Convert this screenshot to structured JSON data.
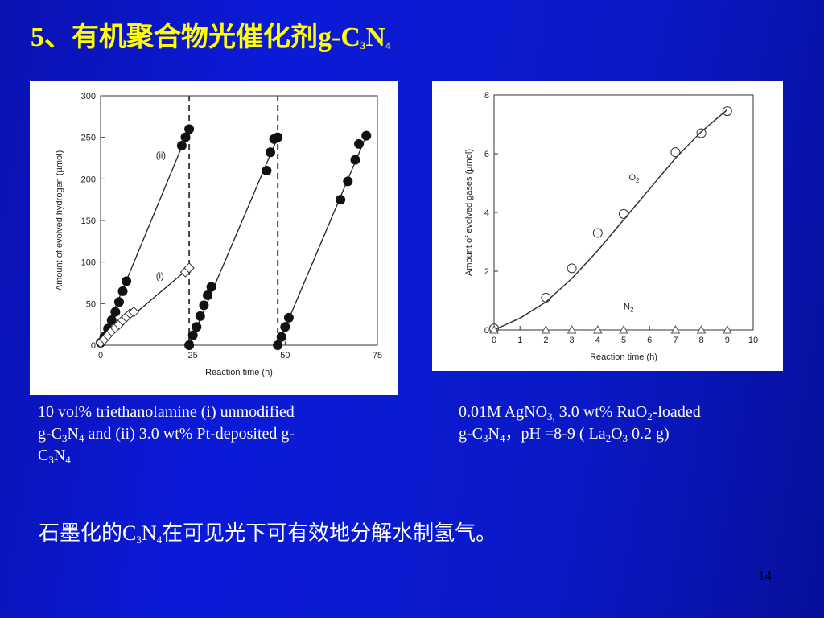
{
  "title": {
    "prefix": "5、有机聚合物光催化剂g-C",
    "sub1": "3",
    "mid": "N",
    "sub2": "4"
  },
  "captions": {
    "left": {
      "l1": "10 vol% triethanolamine (i) unmodified",
      "l2a": "g-C",
      "l2s1": "3",
      "l2b": "N",
      "l2s2": "4",
      "l2c": " and (ii) 3.0 wt% Pt-deposited g-",
      "l3a": "C",
      "l3s1": "3",
      "l3b": "N",
      "l3s2": "4."
    },
    "right": {
      "l1a": "0.01M AgNO",
      "l1s1": "3,",
      "l1b": "  3.0 wt% RuO",
      "l1s2": "2",
      "l1c": "-loaded",
      "l2a": "g-C",
      "l2s1": "3",
      "l2b": "N",
      "l2s2": "4",
      "l2c": "，pH =8-9 ( La",
      "l2s3": "2",
      "l2d": "O",
      "l2s4": "3",
      "l2e": " 0.2 g)"
    }
  },
  "bottom": {
    "a": "石墨化的C",
    "s1": "3",
    "b": "N",
    "s2": "4",
    "c": "在可见光下可有效地分解水制氢气。"
  },
  "page_number": "14",
  "chart_data": [
    {
      "type": "scatter",
      "xlabel": "Reaction time (h)",
      "ylabel": "Amount of evolved hydrogen (µmol)",
      "xlim": [
        0,
        75
      ],
      "ylim": [
        0,
        300
      ],
      "xticks": [
        0,
        25,
        50,
        75
      ],
      "yticks": [
        0,
        50,
        100,
        150,
        200,
        250,
        300
      ],
      "vlines": [
        24,
        48
      ],
      "annotations": [
        {
          "text": "(ii)",
          "x": 15,
          "y": 225
        },
        {
          "text": "(i)",
          "x": 15,
          "y": 80
        }
      ],
      "series": [
        {
          "name": "(ii)",
          "marker": "filled-circle",
          "segments": [
            [
              [
                0,
                3
              ],
              [
                1,
                10
              ],
              [
                2,
                20
              ],
              [
                3,
                30
              ],
              [
                4,
                40
              ],
              [
                5,
                52
              ],
              [
                6,
                65
              ],
              [
                7,
                77
              ],
              [
                22,
                240
              ],
              [
                23,
                250
              ],
              [
                24,
                260
              ]
            ],
            [
              [
                24,
                0
              ],
              [
                25,
                12
              ],
              [
                26,
                22
              ],
              [
                27,
                35
              ],
              [
                28,
                48
              ],
              [
                29,
                60
              ],
              [
                30,
                70
              ],
              [
                45,
                210
              ],
              [
                46,
                232
              ],
              [
                47,
                248
              ],
              [
                48,
                250
              ]
            ],
            [
              [
                48,
                0
              ],
              [
                49,
                10
              ],
              [
                50,
                22
              ],
              [
                51,
                33
              ],
              [
                65,
                175
              ],
              [
                67,
                197
              ],
              [
                69,
                223
              ],
              [
                70,
                242
              ],
              [
                72,
                252
              ]
            ]
          ]
        },
        {
          "name": "(i)",
          "marker": "open-diamond",
          "segments": [
            [
              [
                0,
                3
              ],
              [
                1,
                7
              ],
              [
                2,
                12
              ],
              [
                3,
                17
              ],
              [
                4,
                21
              ],
              [
                5,
                25
              ],
              [
                6,
                30
              ],
              [
                7,
                34
              ],
              [
                8,
                38
              ],
              [
                9,
                40
              ],
              [
                23,
                88
              ],
              [
                24,
                93
              ]
            ]
          ]
        }
      ]
    },
    {
      "type": "scatter",
      "xlabel": "Reaction time (h)",
      "ylabel": "Amount of evolved gases (µmol)",
      "xlim": [
        0,
        10
      ],
      "ylim": [
        0,
        8
      ],
      "xticks": [
        0,
        1,
        2,
        3,
        4,
        5,
        6,
        7,
        8,
        9,
        10
      ],
      "yticks": [
        0,
        2,
        4,
        6,
        8
      ],
      "series": [
        {
          "name": "O2",
          "marker": "open-circle",
          "x": [
            0,
            2,
            3,
            4,
            5,
            7,
            8,
            9
          ],
          "y": [
            0.05,
            1.1,
            2.1,
            3.3,
            3.95,
            6.05,
            6.7,
            7.45
          ],
          "fit_line": [
            [
              0,
              0
            ],
            [
              1,
              0.4
            ],
            [
              2,
              0.95
            ],
            [
              3,
              1.75
            ],
            [
              4,
              2.7
            ],
            [
              5,
              3.75
            ],
            [
              6,
              4.8
            ],
            [
              7,
              5.85
            ],
            [
              8,
              6.75
            ],
            [
              9,
              7.5
            ]
          ]
        },
        {
          "name": "N2",
          "marker": "open-triangle",
          "x": [
            0,
            2,
            3,
            4,
            5,
            7,
            8,
            9
          ],
          "y": [
            0,
            0,
            0,
            0,
            0,
            0,
            0,
            0
          ]
        }
      ],
      "labels": [
        {
          "text": "O",
          "sub": "2",
          "x": 5.2,
          "y": 5.1
        },
        {
          "text": "N",
          "sub": "2",
          "x": 5.0,
          "y": 0.7
        }
      ]
    }
  ]
}
